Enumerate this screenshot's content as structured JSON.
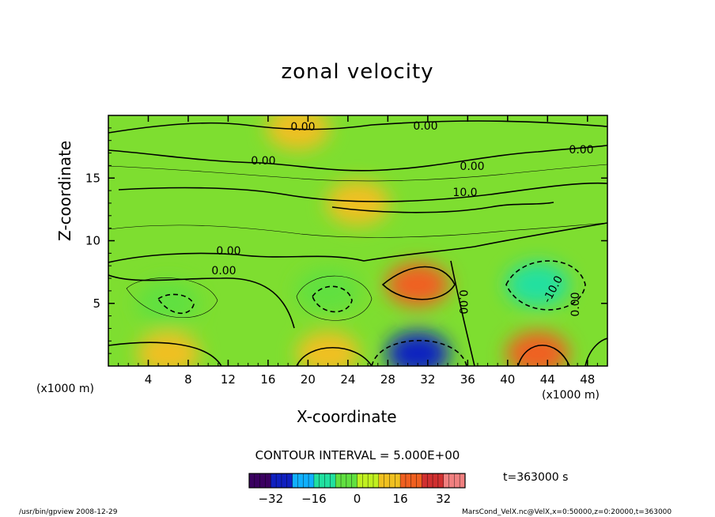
{
  "chart_data": {
    "type": "heatmap",
    "title": "zonal velocity",
    "xlabel": "X-coordinate",
    "ylabel": "Z-coordinate",
    "x_unit_label": "(x1000 m)",
    "x_unit_label_right": "(x1000 m)",
    "xlim": [
      0,
      50
    ],
    "ylim": [
      0,
      20
    ],
    "x_ticks": [
      4,
      8,
      12,
      16,
      20,
      24,
      28,
      32,
      36,
      40,
      44,
      48
    ],
    "y_ticks": [
      5,
      10,
      15
    ],
    "contour_interval_text": "CONTOUR INTERVAL = 5.000E+00",
    "contour_labels": [
      "0.00",
      "0.00",
      "0.00",
      "0.00",
      "10.0",
      "0.00",
      "0.00",
      "0.00",
      "-10.0",
      "0.00",
      "0.00"
    ],
    "colorbar": {
      "range": [
        -40,
        40
      ],
      "ticks": [
        -32,
        -16,
        0,
        16,
        32
      ],
      "colors": [
        "#3a0060",
        "#1020c0",
        "#10b0ff",
        "#20e0a0",
        "#60e040",
        "#c0f020",
        "#f0c020",
        "#f06020",
        "#d03030",
        "#f08080"
      ]
    },
    "features": [
      {
        "x": 31,
        "z": 1,
        "value": -32
      },
      {
        "x": 43,
        "z": 6.5,
        "value": -14
      },
      {
        "x": 6,
        "z": 5,
        "value": -8
      },
      {
        "x": 22,
        "z": 6,
        "value": -8
      },
      {
        "x": 31,
        "z": 6.5,
        "value": 16
      },
      {
        "x": 43,
        "z": 1,
        "value": 18
      },
      {
        "x": 22,
        "z": 1,
        "value": 12
      },
      {
        "x": 6,
        "z": 1,
        "value": 10
      },
      {
        "x": 25,
        "z": 13,
        "value": 10
      },
      {
        "x": 19,
        "z": 19,
        "value": 8
      }
    ]
  },
  "time_text": "t=363000 s",
  "footer_left": "/usr/bin/gpview   2008-12-29",
  "footer_right": "MarsCond_VelX.nc@VelX,x=0:50000,z=0:20000,t=363000"
}
